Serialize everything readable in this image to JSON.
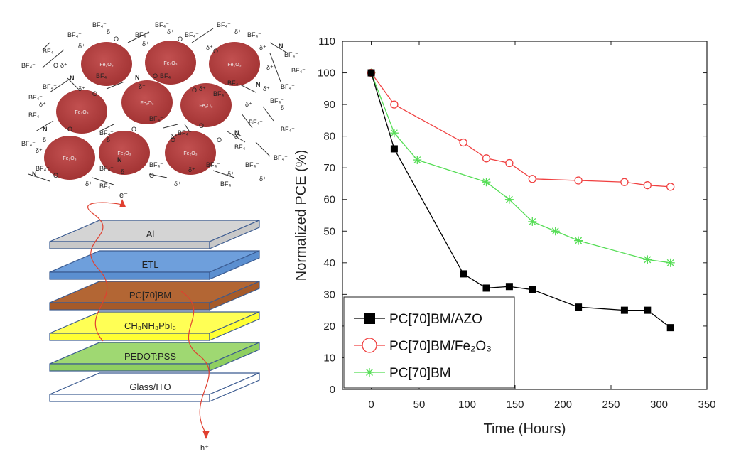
{
  "schematic": {
    "nanoparticle_label": "Fe₂O₃",
    "ligand_label": "BF₄⁻",
    "charge_label": "δ⁺",
    "nitrogen_label": "N",
    "oxygen_label": "O",
    "layers": [
      {
        "label": "Al",
        "color": "#c8c8c8",
        "top_color": "#d4d4d4"
      },
      {
        "label": "ETL",
        "color": "#5b8fd0",
        "top_color": "#6e9fdc"
      },
      {
        "label": "PC[70]BM",
        "color": "#a55a2a",
        "top_color": "#b36634"
      },
      {
        "label": "CH₃NH₃PbI₃",
        "color": "#ffff33",
        "top_color": "#ffff55"
      },
      {
        "label": "PEDOT:PSS",
        "color": "#8fcf60",
        "top_color": "#9fd872"
      },
      {
        "label": "Glass/ITO",
        "color": "#ffffff",
        "top_color": "#ffffff"
      }
    ],
    "electron_label": "e⁻",
    "hole_label": "h⁺"
  },
  "chart_data": {
    "type": "line",
    "xlabel": "Time (Hours)",
    "ylabel": "Normalized PCE (%)",
    "xlim": [
      -30,
      350
    ],
    "ylim": [
      0,
      110
    ],
    "xticks": [
      0,
      50,
      100,
      150,
      200,
      250,
      300,
      350
    ],
    "yticks": [
      0,
      10,
      20,
      30,
      40,
      50,
      60,
      70,
      80,
      90,
      100,
      110
    ],
    "legend_position": "lower-left",
    "series": [
      {
        "name": "PC[70]BM/AZO",
        "marker": "square",
        "color": "#000000",
        "x": [
          0,
          24,
          96,
          120,
          144,
          168,
          216,
          264,
          288,
          312
        ],
        "y": [
          100,
          76,
          36.5,
          32,
          32.5,
          31.5,
          26,
          25,
          25,
          19.5
        ]
      },
      {
        "name": "PC[70]BM/Fe₂O₃",
        "marker": "circle",
        "color": "#f04040",
        "x": [
          0,
          24,
          96,
          120,
          144,
          168,
          216,
          264,
          288,
          312
        ],
        "y": [
          100,
          90,
          78,
          73,
          71.5,
          66.5,
          66,
          65.5,
          64.5,
          64
        ]
      },
      {
        "name": "PC[70]BM",
        "marker": "star",
        "color": "#55dd55",
        "x": [
          0,
          24,
          48,
          120,
          144,
          168,
          192,
          216,
          288,
          312
        ],
        "y": [
          100,
          81,
          72.5,
          65.5,
          60,
          53,
          50,
          47,
          41,
          40
        ]
      }
    ]
  }
}
